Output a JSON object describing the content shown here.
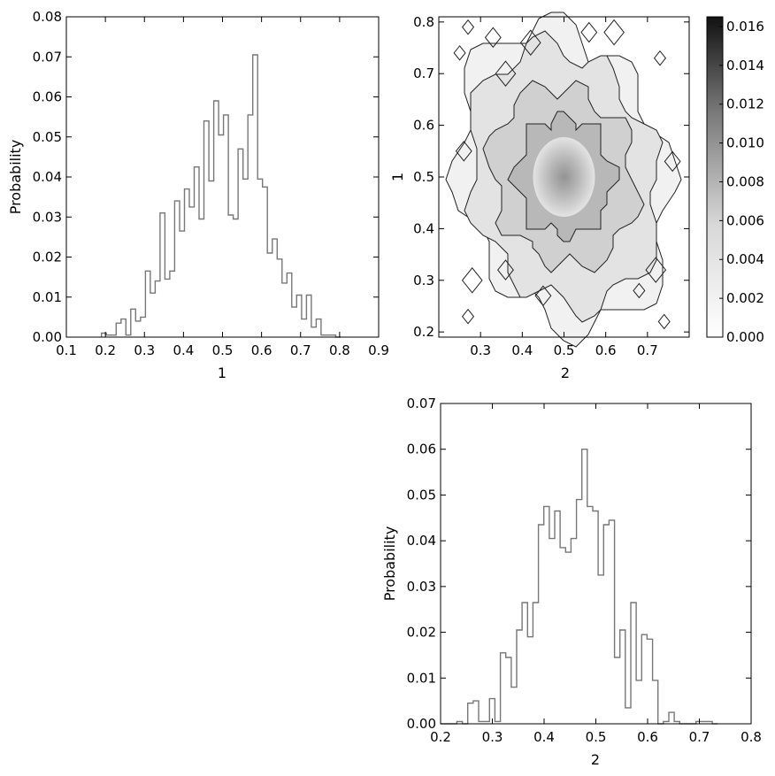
{
  "chart_data": [
    {
      "type": "bar",
      "histtype": "step",
      "xlabel": "1",
      "ylabel": "Probability",
      "xlim": [
        0.1,
        0.9
      ],
      "ylim": [
        0,
        0.08
      ],
      "xticks": [
        "0.1",
        "0.2",
        "0.3",
        "0.4",
        "0.5",
        "0.6",
        "0.7",
        "0.8",
        "0.9"
      ],
      "yticks": [
        "0.00",
        "0.01",
        "0.02",
        "0.03",
        "0.04",
        "0.05",
        "0.06",
        "0.07",
        "0.08"
      ],
      "bin_start": 0.19,
      "bin_width": 0.0125,
      "values": [
        0.001,
        0.0005,
        0.0005,
        0.0035,
        0.0045,
        0.0005,
        0.007,
        0.004,
        0.005,
        0.0165,
        0.011,
        0.014,
        0.031,
        0.0145,
        0.0165,
        0.034,
        0.0265,
        0.037,
        0.0325,
        0.0425,
        0.0295,
        0.054,
        0.039,
        0.059,
        0.0505,
        0.0555,
        0.0305,
        0.0295,
        0.047,
        0.0395,
        0.0555,
        0.0705,
        0.0395,
        0.0375,
        0.021,
        0.0245,
        0.0195,
        0.0135,
        0.016,
        0.0075,
        0.0105,
        0.0045,
        0.0105,
        0.0025,
        0.0045,
        0.0005,
        0.0005,
        0.0005,
        0.0
      ]
    },
    {
      "type": "heatmap",
      "subtype": "contour",
      "xlabel": "2",
      "ylabel": "1",
      "xlim": [
        0.2,
        0.8
      ],
      "ylim": [
        0.19,
        0.81
      ],
      "xticks": [
        "0.3",
        "0.4",
        "0.5",
        "0.6",
        "0.7"
      ],
      "yticks": [
        "0.2",
        "0.3",
        "0.4",
        "0.5",
        "0.6",
        "0.7",
        "0.8"
      ],
      "colorbar": {
        "range": [
          0,
          0.0165
        ],
        "ticks": [
          "0.000",
          "0.002",
          "0.004",
          "0.006",
          "0.008",
          "0.010",
          "0.012",
          "0.014",
          "0.016"
        ],
        "colormap": "greys"
      },
      "density_center": [
        0.5,
        0.5
      ],
      "density_peak": 0.0165
    },
    {
      "type": "bar",
      "histtype": "step",
      "xlabel": "2",
      "ylabel": "Probability",
      "xlim": [
        0.2,
        0.8
      ],
      "ylim": [
        0,
        0.07
      ],
      "xticks": [
        "0.2",
        "0.3",
        "0.4",
        "0.5",
        "0.6",
        "0.7",
        "0.8"
      ],
      "yticks": [
        "0.00",
        "0.01",
        "0.02",
        "0.03",
        "0.04",
        "0.05",
        "0.06",
        "0.07"
      ],
      "bin_start": 0.2,
      "bin_width": 0.0105,
      "values": [
        0.0,
        0.0,
        0.0,
        0.0005,
        0.0,
        0.0045,
        0.005,
        0.0005,
        0.0005,
        0.0055,
        0.0005,
        0.0155,
        0.0145,
        0.008,
        0.0205,
        0.0265,
        0.019,
        0.0265,
        0.0435,
        0.0475,
        0.0405,
        0.0465,
        0.0385,
        0.0375,
        0.0405,
        0.049,
        0.06,
        0.0475,
        0.0465,
        0.0325,
        0.0435,
        0.0445,
        0.0145,
        0.0205,
        0.0035,
        0.0265,
        0.0095,
        0.0195,
        0.0185,
        0.0095,
        0.0,
        0.0005,
        0.0025,
        0.0005,
        0.0,
        0.0,
        0.0,
        0.0005,
        0.0005,
        0.0005,
        0.0
      ]
    }
  ]
}
